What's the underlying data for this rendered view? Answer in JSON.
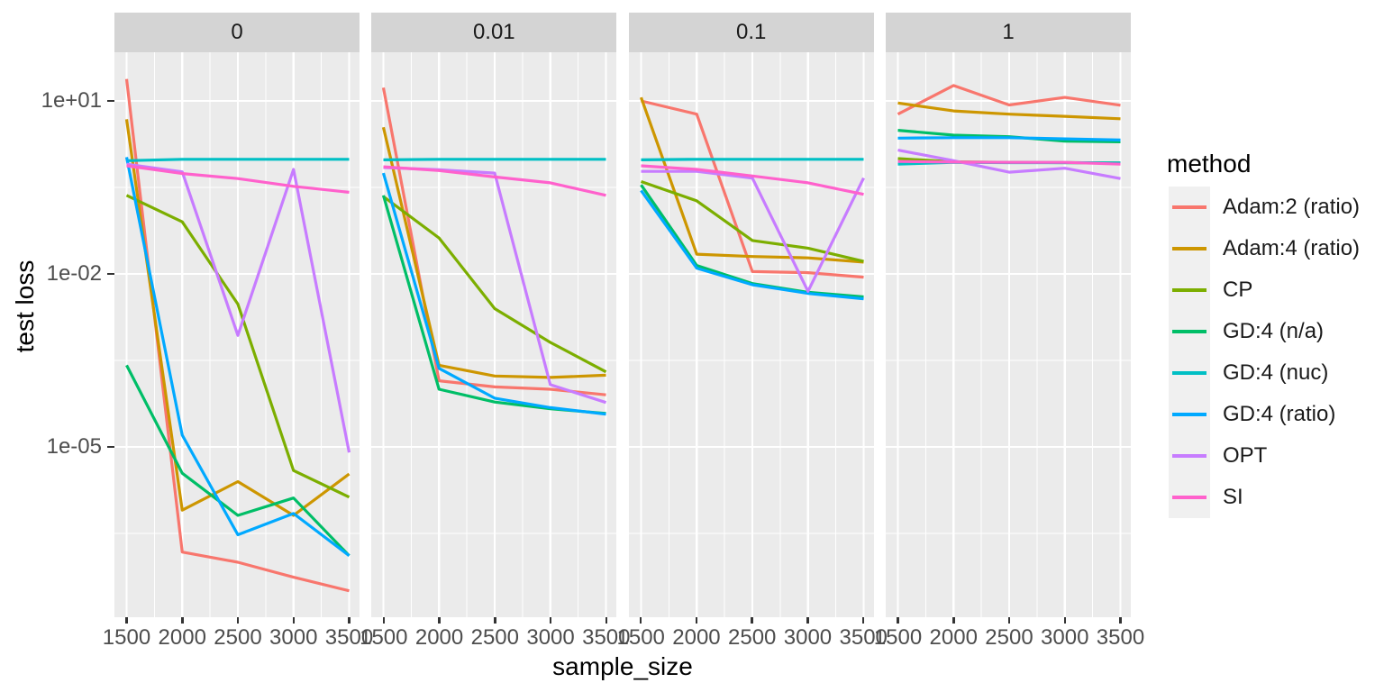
{
  "figure": {
    "background": "#ffffff",
    "panel_background": "#EBEBEB",
    "strip_background": "#D4D4D4",
    "gridline_color": "#FFFFFF",
    "tick_mark_color": "#333333",
    "tick_label_color": "#4D4D4D",
    "legend_key_background": "#F0F0F0"
  },
  "chart_data": {
    "type": "line",
    "faceted": true,
    "facets": [
      "0",
      "0.01",
      "0.1",
      "1"
    ],
    "x": [
      1500,
      2000,
      2500,
      3000,
      3500
    ],
    "x_tick_labels": [
      "1500",
      "2000",
      "2500",
      "3000",
      "3500"
    ],
    "xlabel": "sample_size",
    "ylabel": "test loss",
    "y_scale": "log10",
    "y_ticks": [
      {
        "label": "1e+01",
        "value": 10
      },
      {
        "label": "1e-02",
        "value": 0.01
      },
      {
        "label": "1e-05",
        "value": 1e-05
      }
    ],
    "grid": true,
    "legend_title": "method",
    "legend_position": "right",
    "series": [
      {
        "name": "Adam:2 (ratio)",
        "color": "#F8766D",
        "values": {
          "0": [
            24,
            1.5e-07,
            1e-07,
            5.5e-08,
            3.2e-08
          ],
          "0.01": [
            17,
            0.00014,
            0.00011,
            0.0001,
            8e-05
          ],
          "0.1": [
            10,
            5.9,
            0.011,
            0.0105,
            0.0088
          ],
          "1": [
            5.9,
            18.5,
            8.5,
            11.5,
            8.4
          ]
        }
      },
      {
        "name": "Adam:4 (ratio)",
        "color": "#CD9600",
        "values": {
          "0": [
            4.8,
            8e-07,
            2.5e-06,
            6.5e-07,
            3.4e-06
          ],
          "0.01": [
            3.5,
            0.00026,
            0.00017,
            0.00016,
            0.000175
          ],
          "0.1": [
            11.5,
            0.022,
            0.02,
            0.019,
            0.016
          ],
          "1": [
            9.2,
            6.7,
            5.9,
            5.4,
            4.9
          ]
        }
      },
      {
        "name": "CP",
        "color": "#7CAE00",
        "values": {
          "0": [
            0.23,
            0.08,
            0.003,
            3.9e-06,
            1.35e-06
          ],
          "0.01": [
            0.22,
            0.042,
            0.0025,
            0.00065,
            0.0002
          ],
          "0.1": [
            0.4,
            0.185,
            0.038,
            0.028,
            0.0165
          ],
          "1": [
            1.0,
            0.88,
            0.86,
            0.85,
            0.84
          ]
        }
      },
      {
        "name": "GD:4 (n/a)",
        "color": "#00BE67",
        "values": {
          "0": [
            0.00026,
            3.5e-06,
            6.5e-07,
            1.3e-06,
            1.3e-07
          ],
          "0.01": [
            0.23,
            0.0001,
            6e-05,
            4.6e-05,
            3.8e-05
          ],
          "0.1": [
            0.35,
            0.014,
            0.0068,
            0.0048,
            0.004
          ],
          "1": [
            3.1,
            2.55,
            2.4,
            2.0,
            1.95
          ]
        }
      },
      {
        "name": "GD:4 (nuc)",
        "color": "#00BFC4",
        "values": {
          "0": [
            0.92,
            0.97,
            0.97,
            0.97,
            0.97
          ],
          "0.01": [
            0.95,
            0.97,
            0.97,
            0.97,
            0.97
          ],
          "0.1": [
            0.95,
            0.97,
            0.97,
            0.97,
            0.97
          ],
          "1": [
            0.8,
            0.86,
            0.85,
            0.85,
            0.84
          ]
        }
      },
      {
        "name": "GD:4 (ratio)",
        "color": "#00A9FF",
        "values": {
          "0": [
            1.06,
            1.6e-05,
            3e-07,
            7e-07,
            1.3e-07
          ],
          "0.01": [
            0.56,
            0.00023,
            7e-05,
            4.8e-05,
            3.7e-05
          ],
          "0.1": [
            0.28,
            0.0126,
            0.0065,
            0.0046,
            0.0037
          ],
          "1": [
            2.26,
            2.3,
            2.3,
            2.2,
            2.1
          ]
        }
      },
      {
        "name": "OPT",
        "color": "#C77CFF",
        "values": {
          "0": [
            0.8,
            0.59,
            0.00086,
            0.65,
            8e-06
          ],
          "0.01": [
            0.7,
            0.64,
            0.56,
            0.00012,
            5.9e-05
          ],
          "0.1": [
            0.6,
            0.6,
            0.46,
            0.005,
            0.46
          ],
          "1": [
            1.4,
            0.92,
            0.58,
            0.68,
            0.45
          ]
        }
      },
      {
        "name": "SI",
        "color": "#FF61CC",
        "values": {
          "0": [
            0.75,
            0.55,
            0.45,
            0.33,
            0.26
          ],
          "0.01": [
            0.72,
            0.62,
            0.48,
            0.38,
            0.23
          ],
          "0.1": [
            0.75,
            0.65,
            0.5,
            0.38,
            0.24
          ],
          "1": [
            0.89,
            0.87,
            0.86,
            0.86,
            0.8
          ]
        }
      }
    ]
  }
}
